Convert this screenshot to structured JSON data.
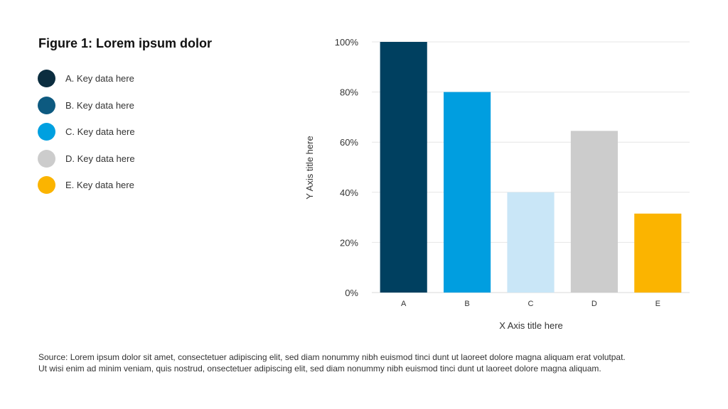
{
  "figure": {
    "title": "Figure 1: Lorem ipsum dolor"
  },
  "legend": {
    "items": [
      {
        "label": "A. Key data here",
        "color": "#0b2d3f"
      },
      {
        "label": "B. Key data here",
        "color": "#0d5a80"
      },
      {
        "label": "C. Key data here",
        "color": "#00a0e0"
      },
      {
        "label": "D. Key data here",
        "color": "#cccccc"
      },
      {
        "label": "E. Key data here",
        "color": "#fbb400"
      }
    ]
  },
  "chart_data": {
    "type": "bar",
    "categories": [
      "A",
      "B",
      "C",
      "D",
      "E"
    ],
    "values": [
      100,
      80,
      40,
      64.5,
      31.5
    ],
    "colors": [
      "#004060",
      "#009ee0",
      "#c9e6f7",
      "#cccccc",
      "#fbb400"
    ],
    "xlabel": "X Axis title here",
    "ylabel": "Y Axis title here",
    "ylim": [
      0,
      100
    ],
    "yticks": [
      0,
      20,
      40,
      60,
      80,
      100
    ],
    "ytick_labels": [
      "0%",
      "20%",
      "40%",
      "60%",
      "80%",
      "100%"
    ],
    "grid": true,
    "legend_placement": "left"
  },
  "source": {
    "line1": "Source: Lorem ipsum dolor sit amet, consectetuer adipiscing elit, sed diam nonummy nibh euismod tinci dunt ut laoreet dolore magna aliquam erat volutpat.",
    "line2": "Ut wisi enim ad minim veniam, quis nostrud, onsectetuer adipiscing elit, sed diam nonummy nibh euismod tinci dunt ut laoreet dolore magna aliquam."
  }
}
